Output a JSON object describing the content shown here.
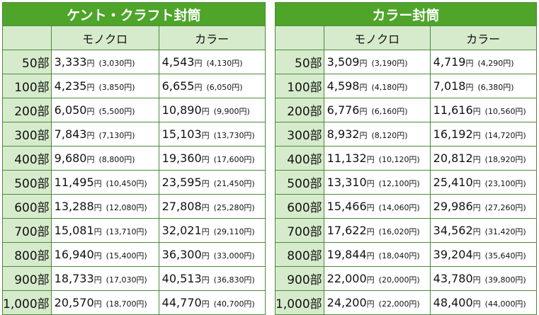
{
  "tables": [
    {
      "title": "ケント・クラフト封筒",
      "col_mono": "モノクロ",
      "col_color": "カラー",
      "rows": [
        {
          "qty": "50部",
          "mono": "3,333",
          "mono_sub": "(3,030円)",
          "color": "4,543",
          "color_sub": "(4,130円)"
        },
        {
          "qty": "100部",
          "mono": "4,235",
          "mono_sub": "(3,850円)",
          "color": "6,655",
          "color_sub": "(6,050円)"
        },
        {
          "qty": "200部",
          "mono": "6,050",
          "mono_sub": "(5,500円)",
          "color": "10,890",
          "color_sub": "(9,900円)"
        },
        {
          "qty": "300部",
          "mono": "7,843",
          "mono_sub": "(7,130円)",
          "color": "15,103",
          "color_sub": "(13,730円)"
        },
        {
          "qty": "400部",
          "mono": "9,680",
          "mono_sub": "(8,800円)",
          "color": "19,360",
          "color_sub": "(17,600円)"
        },
        {
          "qty": "500部",
          "mono": "11,495",
          "mono_sub": "(10,450円)",
          "color": "23,595",
          "color_sub": "(21,450円)"
        },
        {
          "qty": "600部",
          "mono": "13,288",
          "mono_sub": "(12,080円)",
          "color": "27,808",
          "color_sub": "(25,280円)"
        },
        {
          "qty": "700部",
          "mono": "15,081",
          "mono_sub": "(13,710円)",
          "color": "32,021",
          "color_sub": "(29,110円)"
        },
        {
          "qty": "800部",
          "mono": "16,940",
          "mono_sub": "(15,400円)",
          "color": "36,300",
          "color_sub": "(33,000円)"
        },
        {
          "qty": "900部",
          "mono": "18,733",
          "mono_sub": "(17,030円)",
          "color": "40,513",
          "color_sub": "(36,830円)"
        },
        {
          "qty": "1,000部",
          "mono": "20,570",
          "mono_sub": "(18,700円)",
          "color": "44,770",
          "color_sub": "(40,700円)"
        }
      ]
    },
    {
      "title": "カラー封筒",
      "col_mono": "モノクロ",
      "col_color": "カラー",
      "rows": [
        {
          "qty": "50部",
          "mono": "3,509",
          "mono_sub": "(3,190円)",
          "color": "4,719",
          "color_sub": "(4,290円)"
        },
        {
          "qty": "100部",
          "mono": "4,598",
          "mono_sub": "(4,180円)",
          "color": "7,018",
          "color_sub": "(6,380円)"
        },
        {
          "qty": "200部",
          "mono": "6,776",
          "mono_sub": "(6,160円)",
          "color": "11,616",
          "color_sub": "(10,560円)"
        },
        {
          "qty": "300部",
          "mono": "8,932",
          "mono_sub": "(8,120円)",
          "color": "16,192",
          "color_sub": "(14,720円)"
        },
        {
          "qty": "400部",
          "mono": "11,132",
          "mono_sub": "(10,120円)",
          "color": "20,812",
          "color_sub": "(18,920円)"
        },
        {
          "qty": "500部",
          "mono": "13,310",
          "mono_sub": "(12,100円)",
          "color": "25,410",
          "color_sub": "(23,100円)"
        },
        {
          "qty": "600部",
          "mono": "15,466",
          "mono_sub": "(14,060円)",
          "color": "29,986",
          "color_sub": "(27,260円)"
        },
        {
          "qty": "700部",
          "mono": "17,622",
          "mono_sub": "(16,020円)",
          "color": "34,562",
          "color_sub": "(31,420円)"
        },
        {
          "qty": "800部",
          "mono": "19,844",
          "mono_sub": "(18,040円)",
          "color": "39,204",
          "color_sub": "(35,640円)"
        },
        {
          "qty": "900部",
          "mono": "22,000",
          "mono_sub": "(20,000円)",
          "color": "43,780",
          "color_sub": "(39,800円)"
        },
        {
          "qty": "1,000部",
          "mono": "24,200",
          "mono_sub": "(22,000円)",
          "color": "48,400",
          "color_sub": "(44,000円)"
        }
      ]
    }
  ],
  "currency_unit": "円",
  "colors": {
    "title_bg": "#4ea52a",
    "header_bg": "#d6ebcb",
    "border": "#4a8a3c"
  }
}
